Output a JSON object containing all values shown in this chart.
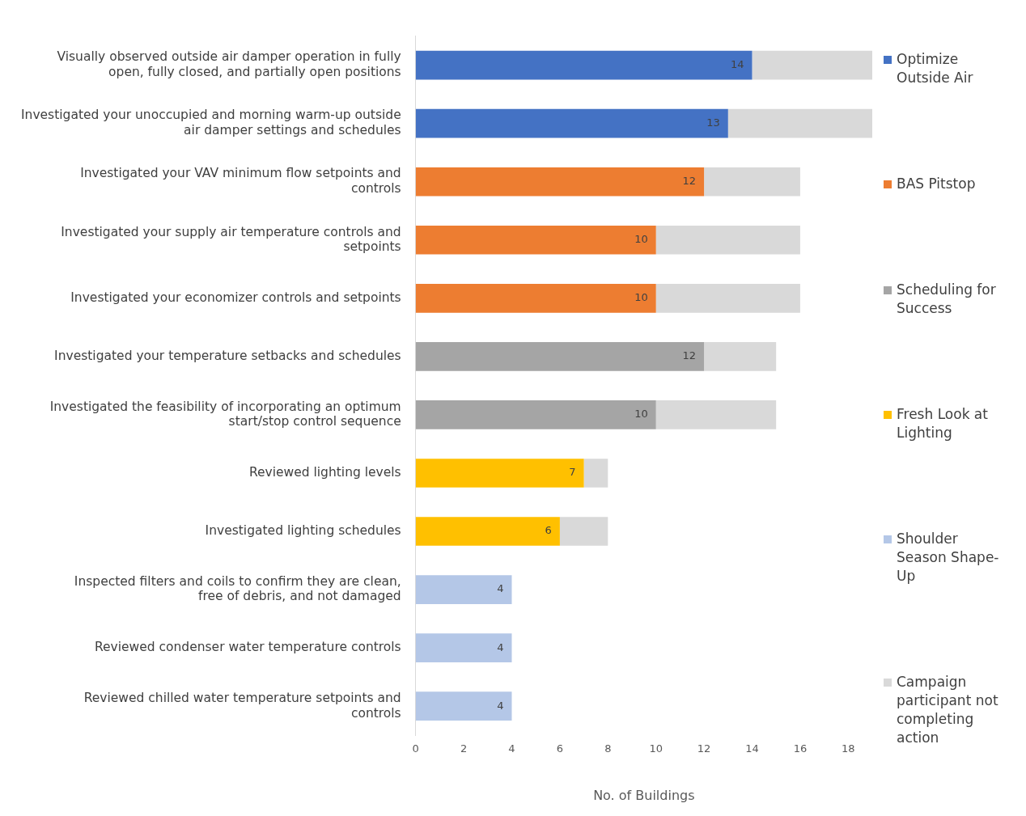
{
  "chart_data": {
    "type": "bar",
    "orientation": "horizontal",
    "stacked": true,
    "xlabel": "No. of Buildings",
    "xlim": [
      0,
      19
    ],
    "xticks": [
      0,
      2,
      4,
      6,
      8,
      10,
      12,
      14,
      16,
      18
    ],
    "grid": false,
    "legend": "right",
    "categories": [
      "Visually observed outside air damper operation in fully open, fully closed, and partially open positions",
      "Investigated your unoccupied and morning warm-up outside air damper settings and schedules",
      "Investigated your VAV minimum flow setpoints and controls",
      "Investigated your supply air temperature controls and setpoints",
      "Investigated your economizer controls and setpoints",
      "Investigated your temperature setbacks and schedules",
      "Investigated the feasibility of incorporating an optimum start/stop control sequence",
      "Reviewed lighting levels",
      "Investigated lighting schedules",
      "Inspected filters and coils to confirm they are clean, free of debris, and not damaged",
      "Reviewed condenser water temperature controls",
      "Reviewed chilled water temperature setpoints and controls"
    ],
    "series": [
      {
        "name": "Optimize Outside Air",
        "color": "#4472c4",
        "values": [
          14,
          13,
          null,
          null,
          null,
          null,
          null,
          null,
          null,
          null,
          null,
          null
        ],
        "value_labels": [
          "14",
          "13",
          null,
          null,
          null,
          null,
          null,
          null,
          null,
          null,
          null,
          null
        ]
      },
      {
        "name": "BAS Pitstop",
        "color": "#ed7d31",
        "values": [
          null,
          null,
          12,
          10,
          10,
          null,
          null,
          null,
          null,
          null,
          null,
          null
        ],
        "value_labels": [
          null,
          null,
          "12",
          "10",
          "10",
          null,
          null,
          null,
          null,
          null,
          null,
          null
        ]
      },
      {
        "name": "Scheduling for Success",
        "color": "#a5a5a5",
        "values": [
          null,
          null,
          null,
          null,
          null,
          12,
          10,
          null,
          null,
          null,
          null,
          null
        ],
        "value_labels": [
          null,
          null,
          null,
          null,
          null,
          "12",
          "10",
          null,
          null,
          null,
          null,
          null
        ]
      },
      {
        "name": "Fresh Look at Lighting",
        "color": "#ffc000",
        "values": [
          null,
          null,
          null,
          null,
          null,
          null,
          null,
          7,
          6,
          null,
          null,
          null
        ],
        "value_labels": [
          null,
          null,
          null,
          null,
          null,
          null,
          null,
          "7",
          "6",
          null,
          null,
          null
        ]
      },
      {
        "name": "Shoulder Season Shape-Up",
        "color": "#b4c7e7",
        "values": [
          null,
          null,
          null,
          null,
          null,
          null,
          null,
          null,
          null,
          4,
          4,
          4
        ],
        "value_labels": [
          null,
          null,
          null,
          null,
          null,
          null,
          null,
          null,
          null,
          "4",
          "4",
          "4"
        ]
      },
      {
        "name": "Campaign participant not completing action",
        "color": "#d9d9d9",
        "values": [
          5,
          6,
          4,
          6,
          6,
          3,
          5,
          1,
          2,
          null,
          null,
          null
        ]
      }
    ]
  }
}
